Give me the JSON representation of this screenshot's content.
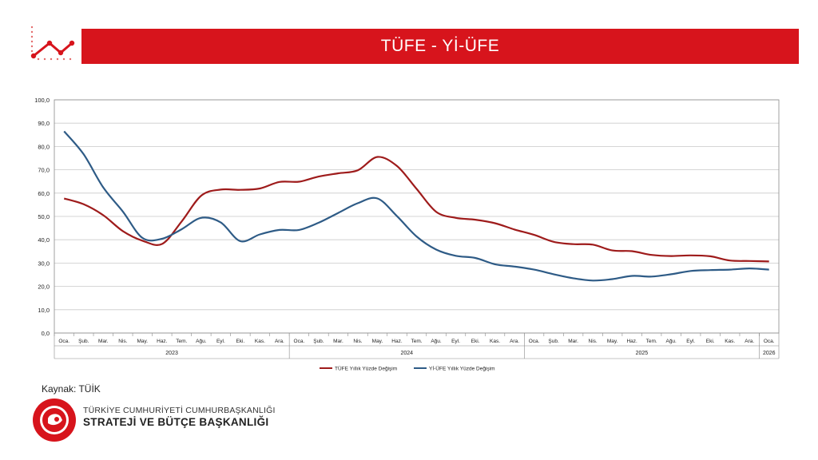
{
  "header": {
    "title": "TÜFE - Yİ-ÜFE",
    "accent_color": "#d7141c",
    "icon": "trend-line-icon"
  },
  "chart_data": {
    "type": "line",
    "title": "",
    "xlabel": "",
    "ylabel": "",
    "ylim": [
      0,
      100
    ],
    "y_ticks": [
      "0,0",
      "10,0",
      "20,0",
      "30,0",
      "40,0",
      "50,0",
      "60,0",
      "70,0",
      "80,0",
      "90,0",
      "100,0"
    ],
    "grid": true,
    "legend_position": "bottom",
    "categories": [
      "Oca.",
      "Şub.",
      "Mar.",
      "Nis.",
      "May.",
      "Haz.",
      "Tem.",
      "Ağu.",
      "Eyl.",
      "Eki.",
      "Kas.",
      "Ara.",
      "Oca.",
      "Şub.",
      "Mar.",
      "Nis.",
      "May.",
      "Haz.",
      "Tem.",
      "Ağu.",
      "Eyl.",
      "Eki.",
      "Kas.",
      "Ara.",
      "Oca.",
      "Şub.",
      "Mar.",
      "Nis.",
      "May.",
      "Haz.",
      "Tem.",
      "Ağu.",
      "Eyl.",
      "Eki.",
      "Kas.",
      "Ara.",
      "Oca."
    ],
    "year_groups": [
      {
        "label": "2023",
        "count": 12
      },
      {
        "label": "2024",
        "count": 12
      },
      {
        "label": "2025",
        "count": 12
      },
      {
        "label": "2026",
        "count": 1
      }
    ],
    "series": [
      {
        "name": "TÜFE Yıllık Yüzde Değişim",
        "color": "#9e1b1b",
        "values": [
          57.7,
          55.2,
          50.5,
          43.7,
          39.6,
          38.2,
          47.8,
          58.9,
          61.5,
          61.4,
          62.0,
          64.8,
          64.9,
          67.1,
          68.5,
          69.8,
          75.5,
          71.6,
          61.8,
          52.0,
          49.4,
          48.6,
          47.1,
          44.4,
          42.1,
          39.1,
          38.1,
          37.9,
          35.4,
          35.1,
          33.5,
          33.0,
          33.3,
          32.9,
          31.1,
          30.9,
          30.7
        ]
      },
      {
        "name": "Yİ-ÜFE Yıllık Yüzde Değişim",
        "color": "#2e5b86",
        "values": [
          86.5,
          76.6,
          62.4,
          52.1,
          40.8,
          40.4,
          44.5,
          49.4,
          47.4,
          39.4,
          42.3,
          44.2,
          44.2,
          47.3,
          51.5,
          55.7,
          57.7,
          50.1,
          41.4,
          35.8,
          33.1,
          32.2,
          29.5,
          28.5,
          27.2,
          25.2,
          23.5,
          22.5,
          23.1,
          24.5,
          24.2,
          25.2,
          26.6,
          27.0,
          27.2,
          27.7,
          27.2
        ]
      }
    ]
  },
  "source": "Kaynak: TÜİK",
  "footer": {
    "org_line1": "TÜRKİYE CUMHURİYETİ CUMHURBAŞKANLIĞI",
    "org_line2": "STRATEJİ VE BÜTÇE BAŞKANLIĞI",
    "logo_icon": "sbb-seal-logo"
  }
}
